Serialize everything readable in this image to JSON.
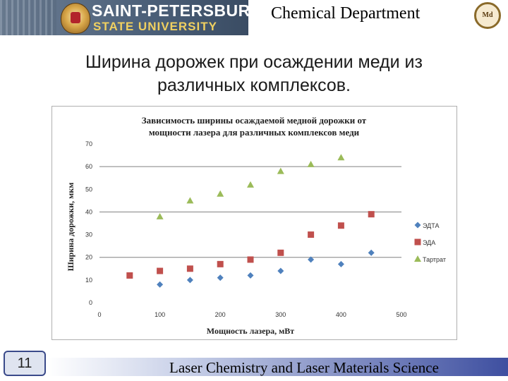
{
  "header": {
    "university_line1": "SAINT-PETERSBURG",
    "university_line2": "STATE UNIVERSITY",
    "department": "Chemical Department",
    "seal_text": "Md"
  },
  "slide": {
    "title_line1": "Ширина дорожек при осаждении меди из",
    "title_line2": "различных комплексов."
  },
  "footer": {
    "page_number": "11",
    "text": "Laser Chemistry and Laser Materials Science"
  },
  "colors": {
    "series_edta": "#4f81bd",
    "series_eda": "#c0504d",
    "series_tartrat": "#9bbb59",
    "gridline": "#808080"
  },
  "chart_data": {
    "type": "scatter",
    "title_line1": "Зависимость ширины осаждаемой медной дорожки от",
    "title_line2": "мощности лазера для различных комплексов меди",
    "xlabel": "Мощность лазера, мВт",
    "ylabel": "Ширина дорожки, мкм",
    "xlim": [
      0,
      500
    ],
    "ylim": [
      0,
      70
    ],
    "x_ticks": [
      0,
      100,
      200,
      300,
      400,
      500
    ],
    "y_ticks": [
      0,
      10,
      20,
      30,
      40,
      50,
      60,
      70
    ],
    "grid": "horizontal major (20, 40, 60)",
    "legend_position": "right",
    "series": [
      {
        "name": "ЭДТА",
        "marker": "diamond",
        "x": [
          100,
          150,
          200,
          250,
          300,
          350,
          400,
          450
        ],
        "y": [
          8,
          10,
          11,
          12,
          14,
          19,
          17,
          22
        ]
      },
      {
        "name": "ЭДА",
        "marker": "square",
        "x": [
          50,
          100,
          150,
          200,
          250,
          300,
          350,
          400,
          450
        ],
        "y": [
          12,
          14,
          15,
          17,
          19,
          22,
          30,
          34,
          39
        ]
      },
      {
        "name": "Тартрат",
        "marker": "triangle",
        "x": [
          100,
          150,
          200,
          250,
          300,
          350,
          400
        ],
        "y": [
          38,
          45,
          48,
          52,
          58,
          61,
          64
        ]
      }
    ]
  }
}
